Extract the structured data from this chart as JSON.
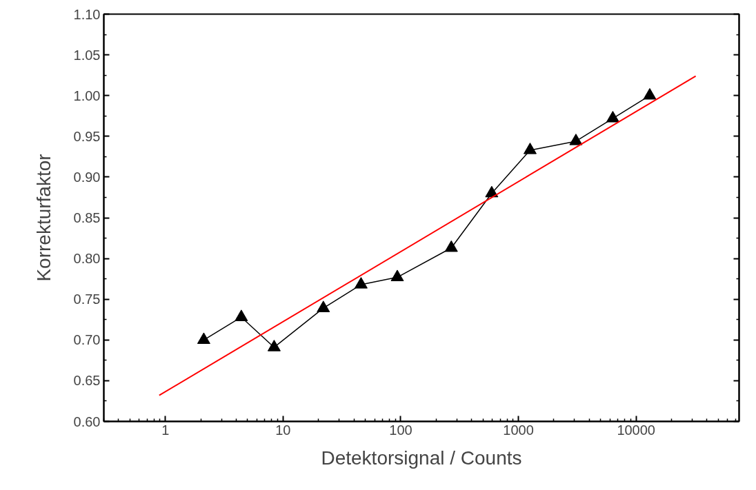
{
  "chart_data": {
    "type": "line",
    "xlabel": "Detektorsignal / Counts",
    "ylabel": "Korrekturfaktor",
    "log": "x",
    "grid": false,
    "xlim": [
      0.3,
      75000
    ],
    "ylim": [
      0.6,
      1.1
    ],
    "xticks": [
      1,
      10,
      100,
      1000,
      10000
    ],
    "yticks": [
      {
        "value": 0.6,
        "label": "0.60"
      },
      {
        "value": 0.65,
        "label": "0.65"
      },
      {
        "value": 0.7,
        "label": "0.70"
      },
      {
        "value": 0.75,
        "label": "0.75"
      },
      {
        "value": 0.8,
        "label": "0.80"
      },
      {
        "value": 0.85,
        "label": "0.85"
      },
      {
        "value": 0.9,
        "label": "0.90"
      },
      {
        "value": 0.95,
        "label": "0.95"
      },
      {
        "value": 1.0,
        "label": "1.00"
      },
      {
        "value": 1.05,
        "label": "1.05"
      },
      {
        "value": 1.1,
        "label": "1.10"
      }
    ],
    "series": [
      {
        "color": "#000000",
        "marker": "triangle",
        "line_style": "solid",
        "x": [
          2.12,
          4.42,
          8.4,
          22,
          46,
          93.5,
          269,
          593,
          1256,
          3080,
          6340,
          13060
        ],
        "values": [
          0.7,
          0.728,
          0.691,
          0.739,
          0.768,
          0.777,
          0.813,
          0.88,
          0.933,
          0.944,
          0.972,
          1.0
        ]
      },
      {
        "color": "#ff0000",
        "marker": "none",
        "line_style": "solid",
        "x": [
          0.887,
          32100
        ],
        "values": [
          0.632,
          1.024
        ]
      }
    ]
  }
}
